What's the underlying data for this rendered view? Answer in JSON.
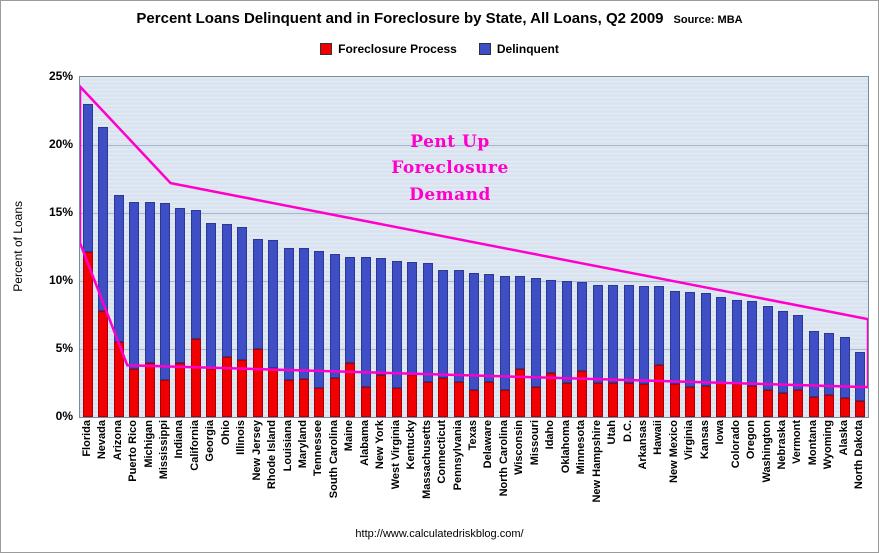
{
  "title": "Percent Loans Delinquent and in Foreclosure by State, All Loans, Q2 2009",
  "source": "Source: MBA",
  "legend": {
    "foreclosure": "Foreclosure Process",
    "delinquent": "Delinquent"
  },
  "y_axis": {
    "label": "Percent of Loans",
    "ticks": [
      "25%",
      "20%",
      "15%",
      "10%",
      "5%",
      "0%"
    ]
  },
  "annotation": {
    "lines": [
      "Pent Up",
      "Foreclosure",
      "Demand"
    ]
  },
  "footer": "http://www.calculatedriskblog.com/",
  "colors": {
    "foreclosure": "#f00000",
    "delinquent": "#3e4ec4",
    "annotation": "#ff00cc",
    "plot_bg": "#dae3f0"
  },
  "chart_data": {
    "type": "bar",
    "stacked": true,
    "title": "Percent Loans Delinquent and in Foreclosure by State, All Loans, Q2 2009",
    "ylabel": "Percent of Loans",
    "ylim": [
      0,
      25
    ],
    "ytick_step": 5,
    "legend_position": "top",
    "grid": true,
    "categories": [
      "Florida",
      "Nevada",
      "Arizona",
      "Puerto Rico",
      "Michigan",
      "Mississippi",
      "Indiana",
      "California",
      "Georgia",
      "Ohio",
      "Illinois",
      "New Jersey",
      "Rhode Island",
      "Louisiana",
      "Maryland",
      "Tennessee",
      "South Carolina",
      "Maine",
      "Alabama",
      "New York",
      "West Virginia",
      "Kentucky",
      "Massachusetts",
      "Connecticut",
      "Pennsylvania",
      "Texas",
      "Delaware",
      "North Carolina",
      "Wisconsin",
      "Missouri",
      "Idaho",
      "Oklahoma",
      "Minnesota",
      "New Hampshire",
      "Utah",
      "D.C.",
      "Arkansas",
      "Hawaii",
      "New Mexico",
      "Virginia",
      "Kansas",
      "Iowa",
      "Colorado",
      "Oregon",
      "Washington",
      "Nebraska",
      "Vermont",
      "Montana",
      "Wyoming",
      "Alaska",
      "North Dakota"
    ],
    "series": [
      {
        "name": "Foreclosure Process",
        "values": [
          12.1,
          7.8,
          5.5,
          3.5,
          4.0,
          2.7,
          4.0,
          5.7,
          3.5,
          4.4,
          4.2,
          5.0,
          3.6,
          2.7,
          2.8,
          2.1,
          2.9,
          4.0,
          2.2,
          3.1,
          2.1,
          3.1,
          2.6,
          2.9,
          2.6,
          2.0,
          2.6,
          2.0,
          3.5,
          2.2,
          3.2,
          2.5,
          3.4,
          2.5,
          2.5,
          2.5,
          2.4,
          3.8,
          2.4,
          2.2,
          2.3,
          2.5,
          2.4,
          2.3,
          2.0,
          1.8,
          2.0,
          1.5,
          1.6,
          1.4,
          1.2
        ]
      },
      {
        "name": "Delinquent",
        "values": [
          10.9,
          13.5,
          10.8,
          12.3,
          11.8,
          13.0,
          11.4,
          9.5,
          10.8,
          9.8,
          9.8,
          8.1,
          9.4,
          9.7,
          9.6,
          10.1,
          9.1,
          7.8,
          9.6,
          8.6,
          9.4,
          8.3,
          8.7,
          7.9,
          8.2,
          8.6,
          7.9,
          8.4,
          6.9,
          8.0,
          6.9,
          7.5,
          6.5,
          7.2,
          7.2,
          7.2,
          7.2,
          5.8,
          6.9,
          7.0,
          6.8,
          6.3,
          6.2,
          6.2,
          6.2,
          6.0,
          5.5,
          4.8,
          4.6,
          4.5,
          3.6
        ]
      }
    ],
    "overlay_polygon_points": [
      [
        0,
        24.3
      ],
      [
        0.115,
        17.2
      ],
      [
        1.0,
        7.2
      ],
      [
        1.0,
        2.2
      ],
      [
        0.06,
        3.8
      ],
      [
        0,
        12.8
      ]
    ]
  }
}
